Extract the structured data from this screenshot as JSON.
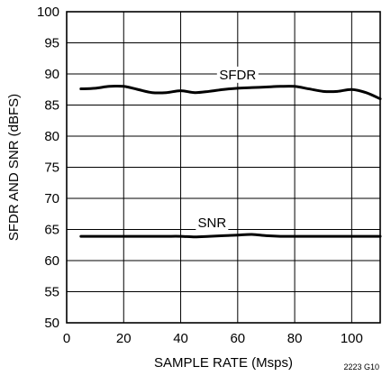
{
  "chart_data": {
    "type": "line",
    "title": "",
    "xlabel": "SAMPLE RATE (Msps)",
    "ylabel": "SFDR AND SNR (dBFS)",
    "xlim": [
      0,
      110
    ],
    "ylim": [
      50,
      100
    ],
    "xticks": [
      0,
      20,
      40,
      60,
      80,
      100
    ],
    "yticks": [
      50,
      55,
      60,
      65,
      70,
      75,
      80,
      85,
      90,
      95,
      100
    ],
    "grid": true,
    "series": [
      {
        "name": "SFDR",
        "x": [
          5,
          10,
          15,
          20,
          25,
          30,
          35,
          40,
          45,
          50,
          55,
          60,
          65,
          70,
          75,
          80,
          85,
          90,
          95,
          100,
          105,
          110
        ],
        "y": [
          87.6,
          87.7,
          88.0,
          88.0,
          87.5,
          87.0,
          87.0,
          87.3,
          87.0,
          87.2,
          87.5,
          87.7,
          87.8,
          87.9,
          88.0,
          88.0,
          87.6,
          87.2,
          87.2,
          87.5,
          87.0,
          86.0
        ]
      },
      {
        "name": "SNR",
        "x": [
          5,
          10,
          15,
          20,
          25,
          30,
          35,
          40,
          45,
          50,
          55,
          60,
          65,
          70,
          75,
          80,
          85,
          90,
          95,
          100,
          105,
          110
        ],
        "y": [
          63.9,
          63.9,
          63.9,
          63.9,
          63.9,
          63.9,
          63.9,
          63.9,
          63.8,
          63.9,
          64.0,
          64.1,
          64.2,
          64.0,
          63.9,
          63.9,
          63.9,
          63.9,
          63.9,
          63.9,
          63.9,
          63.9
        ]
      }
    ]
  },
  "figure_id": "2223 G10"
}
